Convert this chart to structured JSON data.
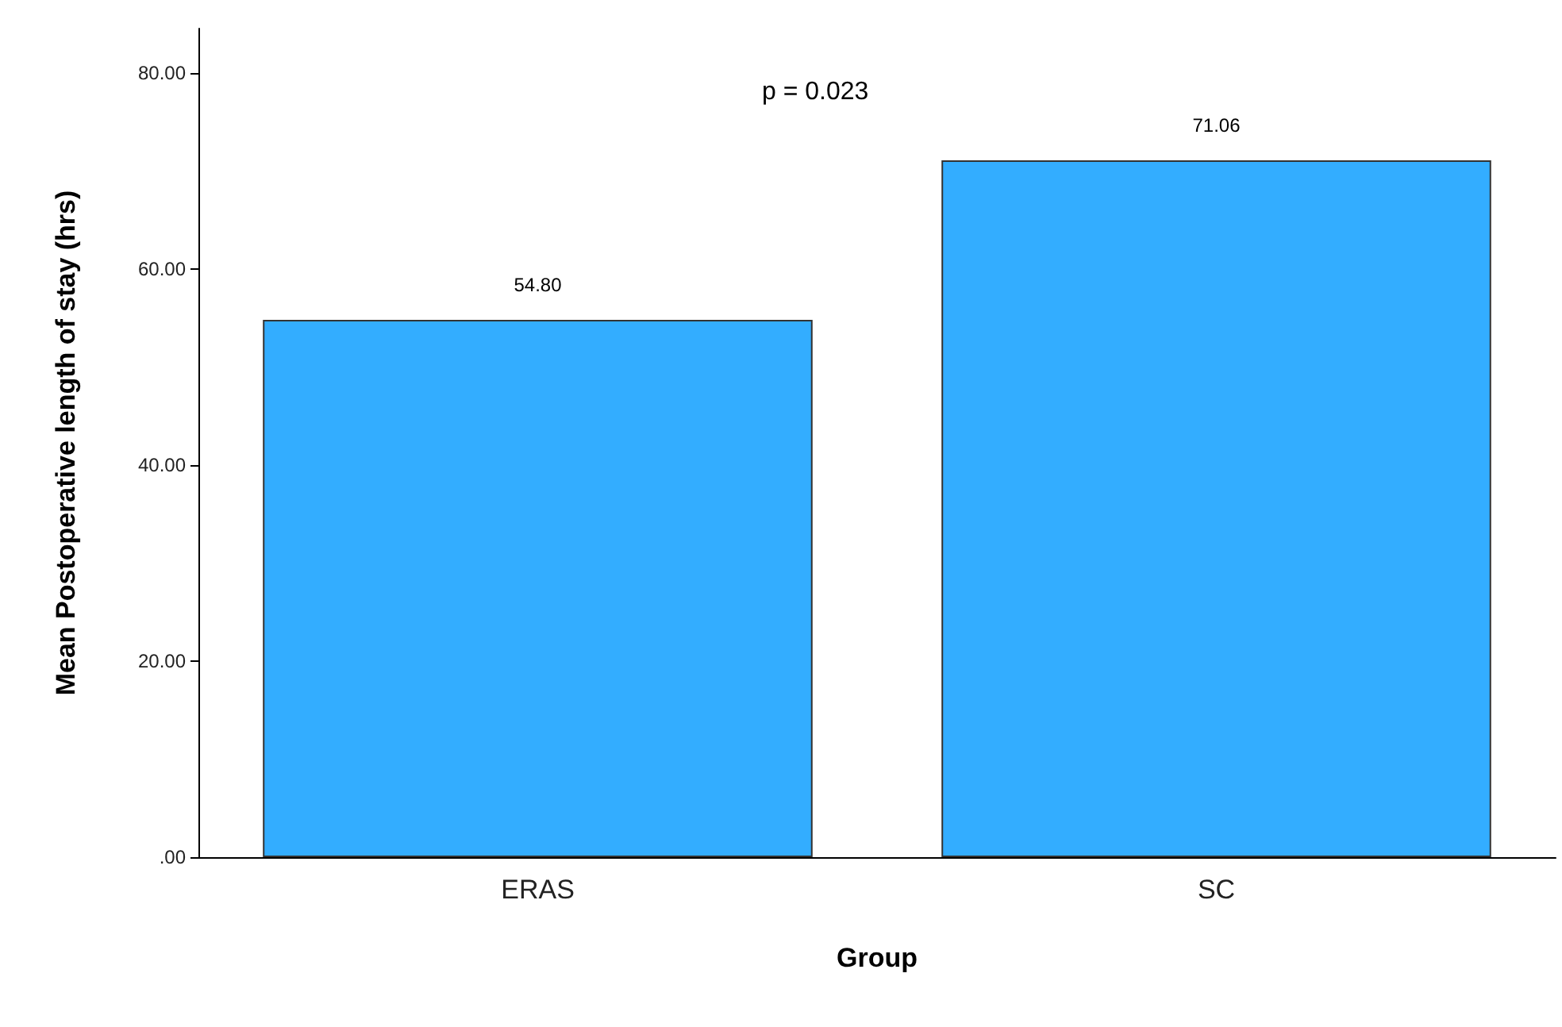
{
  "chart_data": {
    "type": "bar",
    "categories": [
      "ERAS",
      "SC"
    ],
    "values": [
      54.8,
      71.06
    ],
    "value_labels": [
      "54.80",
      "71.06"
    ],
    "color": "#33adff",
    "xlabel": "Group",
    "ylabel": "Mean Postoperative length of stay (hrs)",
    "annotations": [
      "p = 0.023"
    ],
    "ylim": [
      0,
      84.5
    ],
    "yticks": [
      {
        "value": 0,
        "label": ".00"
      },
      {
        "value": 20,
        "label": "20.00"
      },
      {
        "value": 40,
        "label": "40.00"
      },
      {
        "value": 60,
        "label": "60.00"
      },
      {
        "value": 80,
        "label": "80.00"
      }
    ],
    "grid": false
  }
}
